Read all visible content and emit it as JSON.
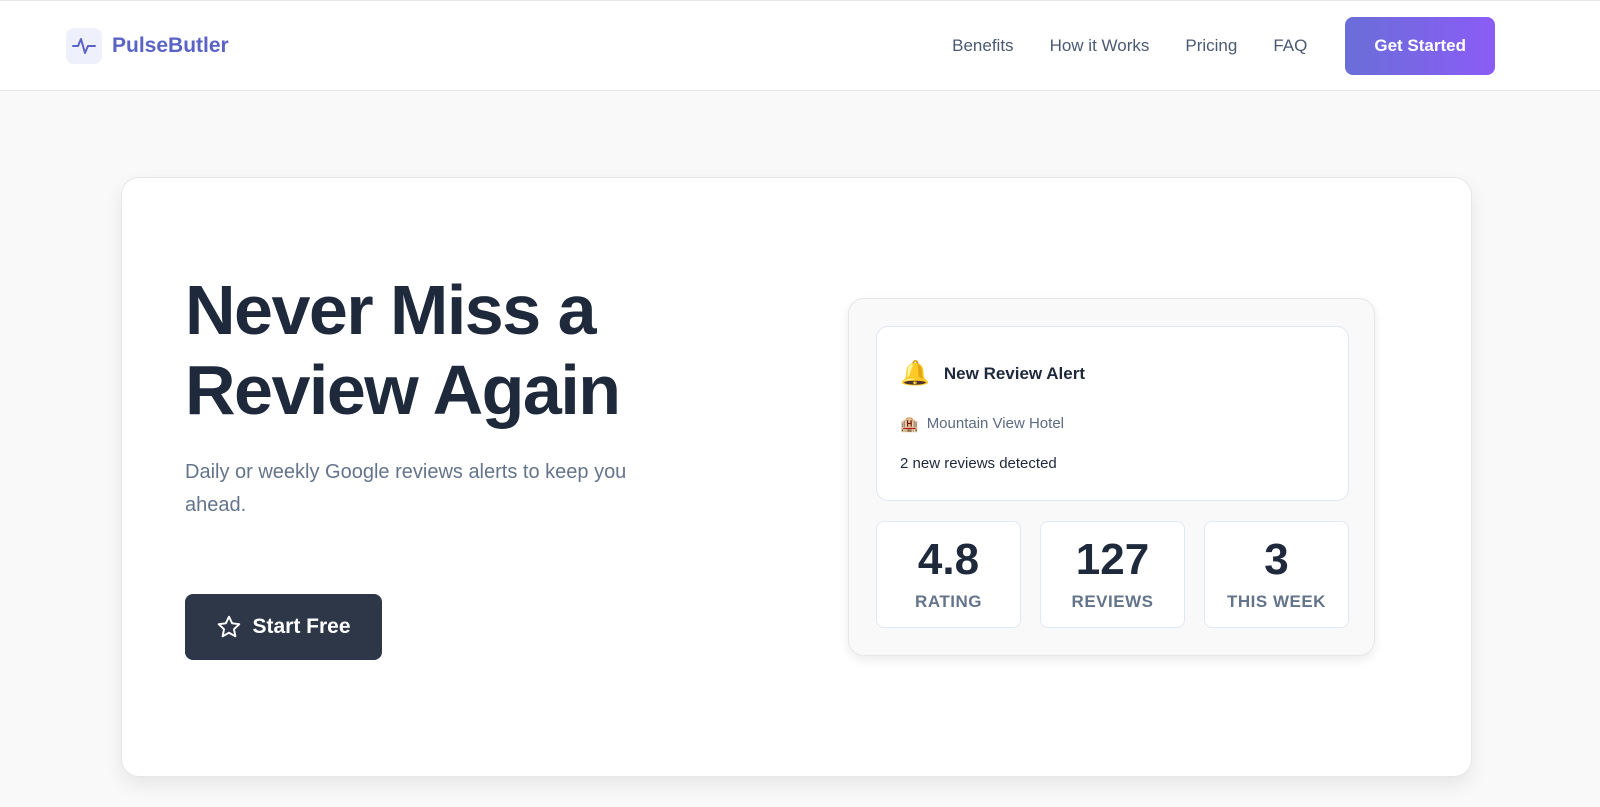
{
  "nav": {
    "brand": "PulseButler",
    "links": [
      "Benefits",
      "How it Works",
      "Pricing",
      "FAQ"
    ],
    "cta": "Get Started"
  },
  "hero": {
    "title_line1": "Never Miss a",
    "title_line2": "Review Again",
    "subtitle": "Daily or weekly Google reviews alerts to keep you ahead.",
    "start_button": "Start Free"
  },
  "alert": {
    "icon": "🔔",
    "title": "New Review Alert",
    "hotel_icon": "🏨",
    "hotel": "Mountain View Hotel",
    "count_text": "2 new reviews detected"
  },
  "stats": [
    {
      "value": "4.8",
      "label": "RATING"
    },
    {
      "value": "127",
      "label": "REVIEWS"
    },
    {
      "value": "3",
      "label": "THIS WEEK"
    }
  ],
  "colors": {
    "brand": "#5b63c4",
    "cta_gradient_start": "#6a6ed8",
    "cta_gradient_end": "#8b5cf6",
    "dark_button": "#2d3748"
  }
}
